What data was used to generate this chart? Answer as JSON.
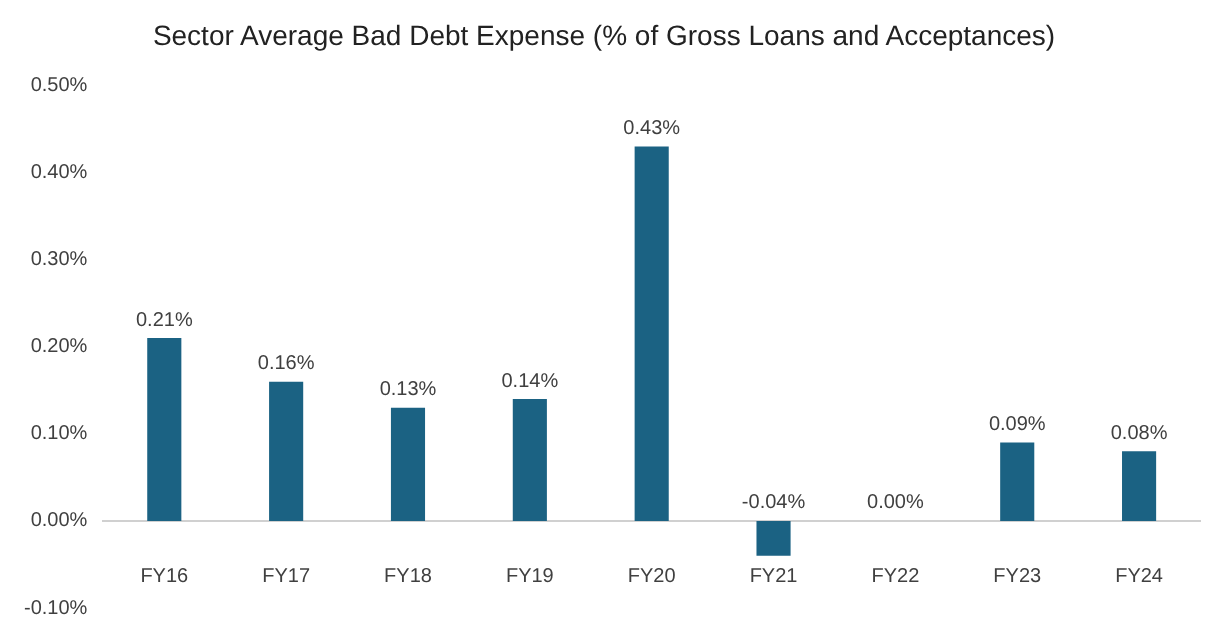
{
  "chart_data": {
    "type": "bar",
    "title": "Sector Average Bad Debt Expense (% of Gross Loans and Acceptances)",
    "categories": [
      "FY16",
      "FY17",
      "FY18",
      "FY19",
      "FY20",
      "FY21",
      "FY22",
      "FY23",
      "FY24"
    ],
    "values": [
      0.21,
      0.16,
      0.13,
      0.14,
      0.43,
      -0.04,
      0.0,
      0.09,
      0.08
    ],
    "value_labels": [
      "0.21%",
      "0.16%",
      "0.13%",
      "0.14%",
      "0.43%",
      "-0.04%",
      "0.00%",
      "0.09%",
      "0.08%"
    ],
    "color": "#1b6283",
    "ylim": [
      -0.1,
      0.5
    ],
    "yticks": [
      {
        "value": -0.1,
        "label": "-0.10%"
      },
      {
        "value": 0,
        "label": "0.00%"
      },
      {
        "value": 0.1,
        "label": "0.10%"
      },
      {
        "value": 0.2,
        "label": "0.20%"
      },
      {
        "value": 0.3,
        "label": "0.30%"
      },
      {
        "value": 0.4,
        "label": "0.40%"
      },
      {
        "value": 0.5,
        "label": "0.50%"
      }
    ],
    "grid": false,
    "legend": false
  }
}
